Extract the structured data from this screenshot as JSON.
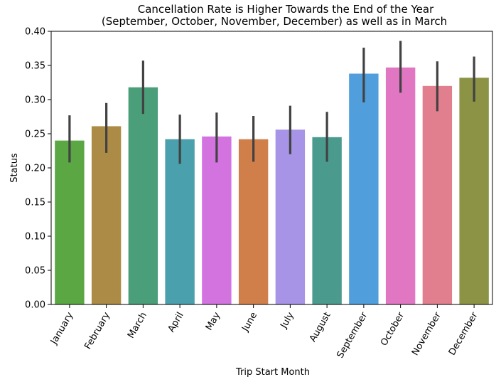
{
  "chart_data": {
    "type": "bar",
    "title_line1": "Cancellation Rate is Higher Towards the End of the Year",
    "title_line2": "(September, October, November, December) as well as in March",
    "xlabel": "Trip Start Month",
    "ylabel": "Status",
    "ylim": [
      0,
      0.4
    ],
    "yticks": [
      "0.00",
      "0.05",
      "0.10",
      "0.15",
      "0.20",
      "0.25",
      "0.30",
      "0.35",
      "0.40"
    ],
    "categories": [
      "January",
      "February",
      "March",
      "April",
      "May",
      "June",
      "July",
      "August",
      "September",
      "October",
      "November",
      "December"
    ],
    "values": [
      0.24,
      0.261,
      0.318,
      0.242,
      0.246,
      0.242,
      0.256,
      0.245,
      0.338,
      0.347,
      0.32,
      0.332
    ],
    "error_low": [
      0.208,
      0.222,
      0.279,
      0.206,
      0.208,
      0.209,
      0.22,
      0.209,
      0.296,
      0.31,
      0.283,
      0.297
    ],
    "error_high": [
      0.277,
      0.295,
      0.357,
      0.278,
      0.281,
      0.276,
      0.291,
      0.282,
      0.376,
      0.386,
      0.356,
      0.363
    ],
    "colors": [
      "#5ba744",
      "#ab8b45",
      "#4a9e79",
      "#4aa0ad",
      "#d273e0",
      "#d07f4b",
      "#a794e6",
      "#4a9b8e",
      "#509edb",
      "#e176c3",
      "#e17f8e",
      "#8c9345"
    ],
    "errorbar_color": "#424242",
    "grid": false,
    "legend": "none"
  }
}
